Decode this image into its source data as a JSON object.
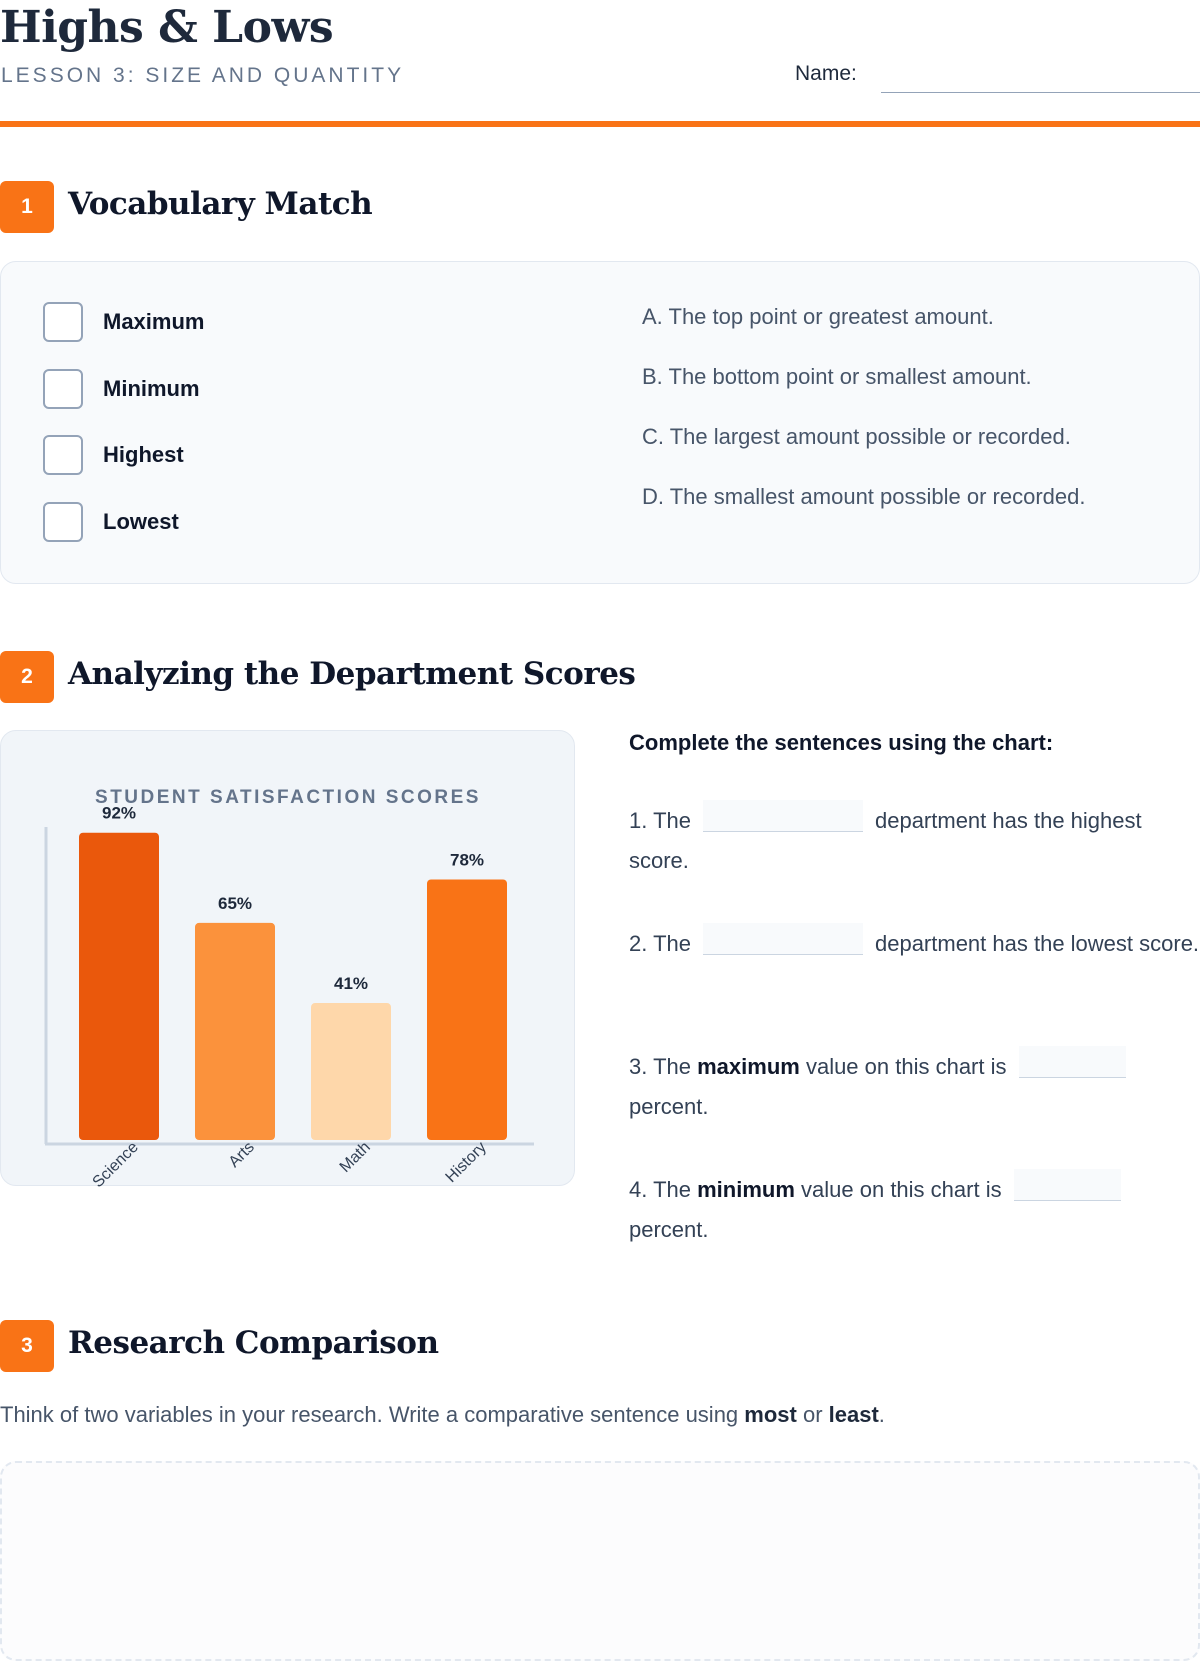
{
  "header": {
    "title": "Highs & Lows",
    "subtitle": "LESSON 3: SIZE AND QUANTITY",
    "name_label": "Name:"
  },
  "section1": {
    "number": "1",
    "title": "Vocabulary Match",
    "terms": [
      "Maximum",
      "Minimum",
      "Highest",
      "Lowest"
    ],
    "definitions": [
      "A. The top point or greatest amount.",
      "B. The bottom point or smallest amount.",
      "C. The largest amount possible or recorded.",
      "D. The smallest amount possible or recorded."
    ]
  },
  "section2": {
    "number": "2",
    "title": "Analyzing the Department Scores",
    "instructions": "Complete the sentences using the chart:",
    "sentences": [
      {
        "pre": "1. The",
        "bold": "",
        "mid": "",
        "post": "department has the highest score."
      },
      {
        "pre": "2. The",
        "bold": "",
        "mid": "",
        "post": "department has the lowest score."
      },
      {
        "pre": "3. The",
        "bold": "maximum",
        "mid": "value on this chart is",
        "post": "percent."
      },
      {
        "pre": "4. The",
        "bold": "minimum",
        "mid": "value on this chart is",
        "post": "percent."
      }
    ]
  },
  "section3": {
    "number": "3",
    "title": "Research Comparison",
    "prompt_pre": "Think of two variables in your research. Write a comparative sentence using ",
    "bold1": "most",
    "mid": " or ",
    "bold2": "least",
    "end": "."
  },
  "chart_data": {
    "type": "bar",
    "title": "STUDENT SATISFACTION SCORES",
    "categories": [
      "Science",
      "Arts",
      "Math",
      "History"
    ],
    "values": [
      92,
      65,
      41,
      78
    ],
    "value_labels": [
      "92%",
      "65%",
      "41%",
      "78%"
    ],
    "colors": [
      "#ea580c",
      "#fb923c",
      "#fed7aa",
      "#f97316"
    ],
    "ylim": [
      0,
      100
    ],
    "xlabel": "",
    "ylabel": "",
    "grid": false
  }
}
